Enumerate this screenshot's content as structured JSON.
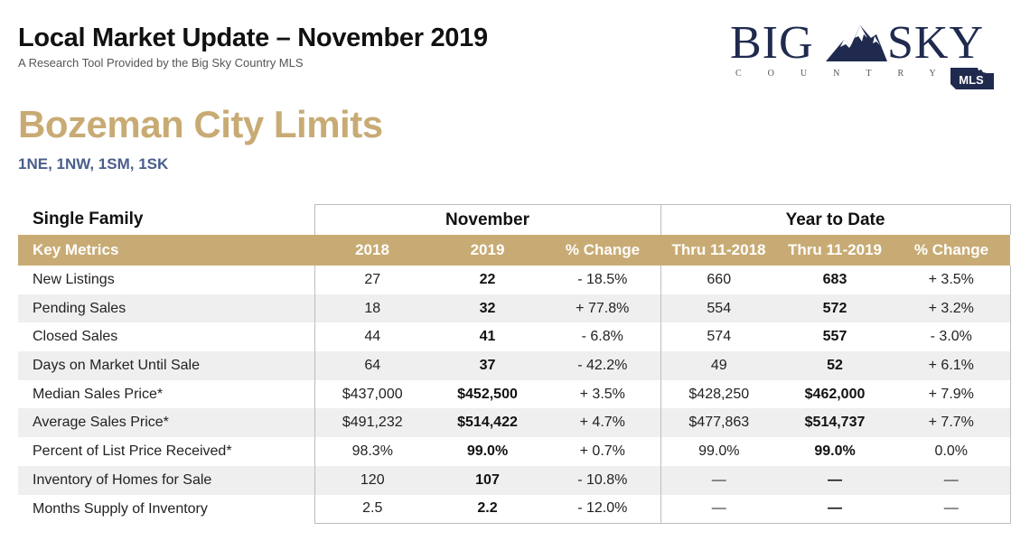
{
  "header": {
    "title": "Local Market Update – November 2019",
    "subtitle": "A Research Tool Provided by the Big Sky Country MLS"
  },
  "logo": {
    "word_left": "BIG",
    "word_right": "SKY",
    "tagline": "COUNTRY",
    "badge": "MLS",
    "color": "#1f2a4e"
  },
  "area": {
    "title": "Bozeman City Limits",
    "subtitle": "1NE, 1NW, 1SM, 1SK"
  },
  "colors": {
    "accent_gold": "#c8ab74",
    "subtitle_blue": "#4a5e8c",
    "row_stripe": "#efefef"
  },
  "table": {
    "property_type": "Single Family",
    "group_month": "November",
    "group_ytd": "Year to Date",
    "columns": [
      "Key Metrics",
      "2018",
      "2019",
      "% Change",
      "Thru 11-2018",
      "Thru 11-2019",
      "% Change"
    ],
    "rows": [
      {
        "metric": "New Listings",
        "m2018": "27",
        "m2019": "22",
        "m_change": "- 18.5%",
        "ytd2018": "660",
        "ytd2019": "683",
        "ytd_change": "+ 3.5%"
      },
      {
        "metric": "Pending Sales",
        "m2018": "18",
        "m2019": "32",
        "m_change": "+ 77.8%",
        "ytd2018": "554",
        "ytd2019": "572",
        "ytd_change": "+ 3.2%"
      },
      {
        "metric": "Closed Sales",
        "m2018": "44",
        "m2019": "41",
        "m_change": "- 6.8%",
        "ytd2018": "574",
        "ytd2019": "557",
        "ytd_change": "- 3.0%"
      },
      {
        "metric": "Days on Market Until Sale",
        "m2018": "64",
        "m2019": "37",
        "m_change": "- 42.2%",
        "ytd2018": "49",
        "ytd2019": "52",
        "ytd_change": "+ 6.1%"
      },
      {
        "metric": "Median Sales Price*",
        "m2018": "$437,000",
        "m2019": "$452,500",
        "m_change": "+ 3.5%",
        "ytd2018": "$428,250",
        "ytd2019": "$462,000",
        "ytd_change": "+ 7.9%"
      },
      {
        "metric": "Average Sales Price*",
        "m2018": "$491,232",
        "m2019": "$514,422",
        "m_change": "+ 4.7%",
        "ytd2018": "$477,863",
        "ytd2019": "$514,737",
        "ytd_change": "+ 7.7%"
      },
      {
        "metric": "Percent of List Price Received*",
        "m2018": "98.3%",
        "m2019": "99.0%",
        "m_change": "+ 0.7%",
        "ytd2018": "99.0%",
        "ytd2019": "99.0%",
        "ytd_change": "0.0%"
      },
      {
        "metric": "Inventory of Homes for Sale",
        "m2018": "120",
        "m2019": "107",
        "m_change": "- 10.8%",
        "ytd2018": "—",
        "ytd2019": "—",
        "ytd_change": "—"
      },
      {
        "metric": "Months Supply of Inventory",
        "m2018": "2.5",
        "m2019": "2.2",
        "m_change": "- 12.0%",
        "ytd2018": "—",
        "ytd2019": "—",
        "ytd_change": "—"
      }
    ]
  }
}
